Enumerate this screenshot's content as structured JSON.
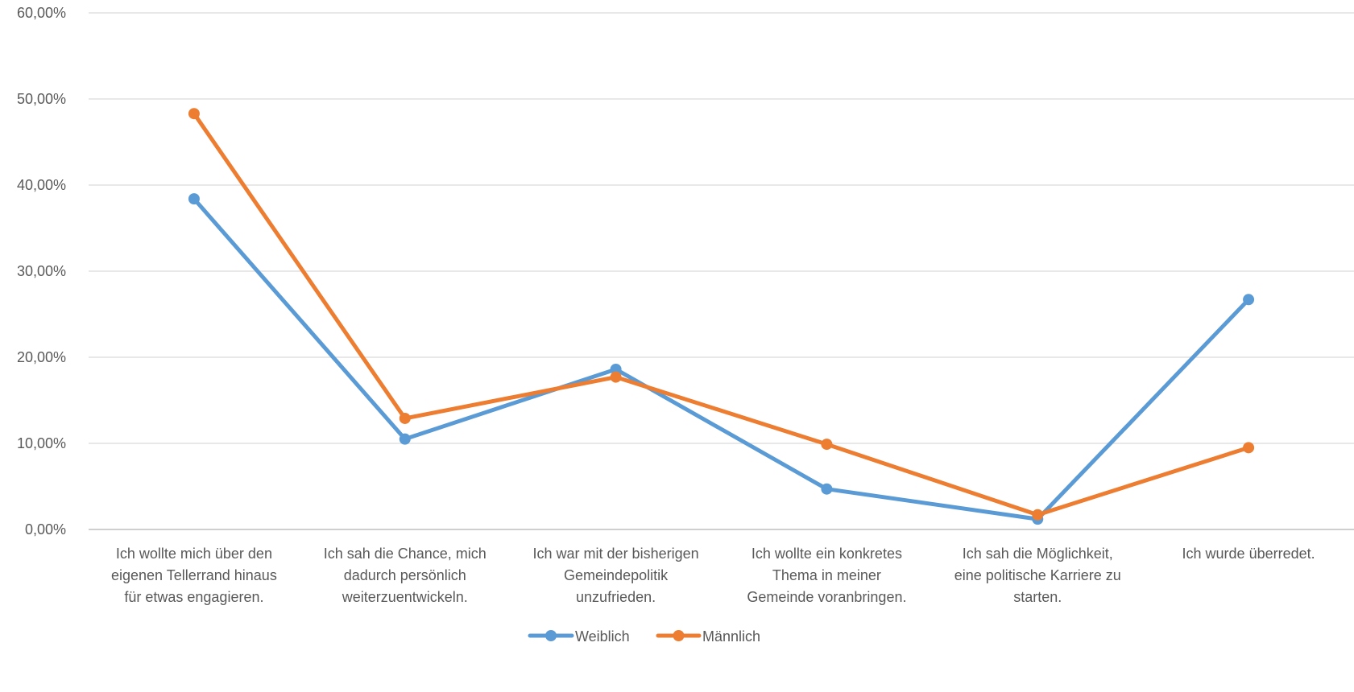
{
  "chart_data": {
    "type": "line",
    "title": "",
    "xlabel": "",
    "ylabel": "",
    "ylim": [
      0,
      60
    ],
    "y_ticks": [
      "0,00%",
      "10,00%",
      "20,00%",
      "30,00%",
      "40,00%",
      "50,00%",
      "60,00%"
    ],
    "y_tick_values": [
      0,
      10,
      20,
      30,
      40,
      50,
      60
    ],
    "grid": true,
    "legend_position": "bottom",
    "categories": [
      [
        "Ich wollte mich über den",
        "eigenen Tellerrand hinaus",
        "für etwas engagieren."
      ],
      [
        "Ich sah die Chance, mich",
        "dadurch persönlich",
        "weiterzuentwickeln."
      ],
      [
        "Ich war mit der bisherigen",
        "Gemeindepolitik",
        "unzufrieden."
      ],
      [
        "Ich wollte ein konkretes",
        "Thema in meiner",
        "Gemeinde voranbringen."
      ],
      [
        "Ich sah die Möglichkeit,",
        "eine politische Karriere zu",
        "starten."
      ],
      [
        "Ich wurde überredet."
      ]
    ],
    "series": [
      {
        "name": "Weiblich",
        "color": "#5B9BD5",
        "values": [
          38.4,
          10.5,
          18.6,
          4.7,
          1.2,
          26.7
        ]
      },
      {
        "name": "Männlich",
        "color": "#ED7D31",
        "values": [
          48.3,
          12.9,
          17.7,
          9.9,
          1.7,
          9.5
        ]
      }
    ]
  }
}
